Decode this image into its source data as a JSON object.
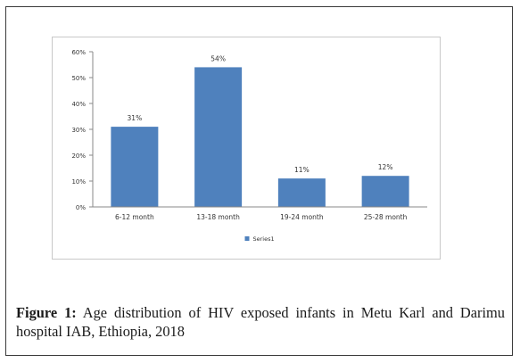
{
  "chart_data": {
    "type": "bar",
    "categories": [
      "6-12 month",
      "13-18 month",
      "19-24 month",
      "25-28 month"
    ],
    "series": [
      {
        "name": "Series1",
        "values": [
          31,
          54,
          11,
          12
        ],
        "labels": [
          "31%",
          "54%",
          "11%",
          "12%"
        ]
      }
    ],
    "ylim": [
      0,
      60
    ],
    "yticks": [
      "0%",
      "10%",
      "20%",
      "30%",
      "40%",
      "50%",
      "60%"
    ],
    "bar_color": "#4f81bd",
    "grid": false,
    "legend": "bottom",
    "title": "",
    "xlabel": "",
    "ylabel": ""
  },
  "caption": {
    "label": "Figure 1:",
    "text": " Age distribution of HIV exposed infants in Metu Karl and Darimu hospital IAB, Ethiopia, 2018"
  }
}
